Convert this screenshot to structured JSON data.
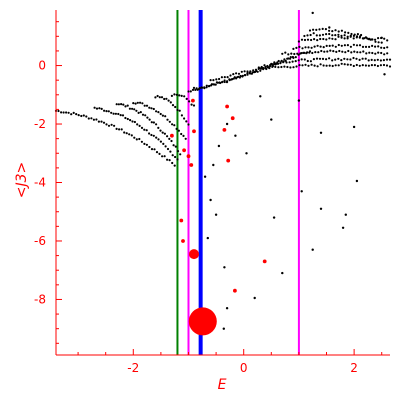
{
  "chart_data": {
    "type": "scatter",
    "xlabel": "E",
    "ylabel": "<J3>",
    "xlim": [
      -3.4,
      2.65
    ],
    "ylim": [
      -9.9,
      1.9
    ],
    "x_ticks": [
      -2,
      0,
      2
    ],
    "y_ticks": [
      0,
      -2,
      -4,
      -6,
      -8
    ],
    "x_tick_labels": [
      "-2",
      "0",
      "2"
    ],
    "y_tick_labels": [
      "0",
      "-2",
      "-4",
      "-6",
      "-8"
    ],
    "grid": false,
    "colors": {
      "axes": "#ff0000",
      "points": "#000000",
      "highlight_points": "#ff0000",
      "line_green": "#008000",
      "line_magenta": "#ff00ff",
      "line_blue": "#0000ff"
    },
    "vertical_lines": [
      {
        "x": -1.2,
        "color": "#008000",
        "width": "thin"
      },
      {
        "x": -1.0,
        "color": "#ff00ff",
        "width": "thin"
      },
      {
        "x": -0.78,
        "color": "#0000ff",
        "width": "thick"
      },
      {
        "x": 1.0,
        "color": "#ff00ff",
        "width": "thin"
      }
    ],
    "highlight_points": [
      {
        "x": -0.74,
        "y": -8.75,
        "size": "very-large"
      },
      {
        "x": -0.9,
        "y": -6.45,
        "size": "medium"
      },
      {
        "x": -0.16,
        "y": -7.7,
        "size": "small"
      },
      {
        "x": -1.08,
        "y": -2.9,
        "size": "small"
      },
      {
        "x": -1.0,
        "y": -3.1,
        "size": "small"
      },
      {
        "x": -0.95,
        "y": -3.4,
        "size": "small"
      },
      {
        "x": -0.9,
        "y": -2.25,
        "size": "small"
      },
      {
        "x": -0.92,
        "y": -1.2,
        "size": "small"
      },
      {
        "x": -0.35,
        "y": -2.2,
        "size": "small"
      },
      {
        "x": -0.3,
        "y": -1.4,
        "size": "small"
      },
      {
        "x": -0.28,
        "y": -3.25,
        "size": "small"
      },
      {
        "x": -1.13,
        "y": -5.3,
        "size": "small"
      },
      {
        "x": -1.1,
        "y": -6.0,
        "size": "small"
      },
      {
        "x": -1.3,
        "y": -2.4,
        "size": "small"
      },
      {
        "x": -0.2,
        "y": -1.8,
        "size": "small"
      },
      {
        "x": 0.38,
        "y": -6.7,
        "size": "small"
      }
    ],
    "scatter_branches": [
      {
        "x_start": -3.4,
        "y_start": -1.55,
        "x_end": -1.25,
        "y_end": -3.4,
        "n": 48
      },
      {
        "x_start": -2.7,
        "y_start": -1.45,
        "x_end": -1.2,
        "y_end": -3.2,
        "n": 36
      },
      {
        "x_start": -2.3,
        "y_start": -1.3,
        "x_end": -1.15,
        "y_end": -3.0,
        "n": 30
      },
      {
        "x_start": -2.0,
        "y_start": -1.25,
        "x_end": -1.05,
        "y_end": -2.5,
        "n": 24
      },
      {
        "x_start": -1.6,
        "y_start": -1.05,
        "x_end": -1.0,
        "y_end": -2.0,
        "n": 16
      },
      {
        "x_start": -1.3,
        "y_start": -1.0,
        "x_end": -0.9,
        "y_end": -1.4,
        "n": 10
      },
      {
        "x_start": -1.0,
        "y_start": -0.9,
        "x_end": 0.6,
        "y_end": 0.1,
        "n": 40
      },
      {
        "x_start": -0.9,
        "y_start": -0.8,
        "x_end": 0.9,
        "y_end": 0.3,
        "n": 40
      },
      {
        "x_start": -0.6,
        "y_start": -0.5,
        "x_end": 1.2,
        "y_end": 0.5,
        "n": 36
      },
      {
        "x_start": 0.3,
        "y_start": -0.1,
        "x_end": 2.65,
        "y_end": 0.0,
        "n": 44
      },
      {
        "x_start": 0.5,
        "y_start": 0.1,
        "x_end": 2.65,
        "y_end": 0.2,
        "n": 40
      },
      {
        "x_start": 0.7,
        "y_start": 0.4,
        "x_end": 2.6,
        "y_end": 0.4,
        "n": 36
      },
      {
        "x_start": 0.9,
        "y_start": 0.6,
        "x_end": 2.6,
        "y_end": 0.6,
        "n": 32
      },
      {
        "x_start": 1.0,
        "y_start": 0.85,
        "x_end": 2.6,
        "y_end": 0.9,
        "n": 30
      },
      {
        "x_start": 1.1,
        "y_start": 1.05,
        "x_end": 2.5,
        "y_end": 0.8,
        "n": 26
      },
      {
        "x_start": 1.2,
        "y_start": 1.2,
        "x_end": 2.3,
        "y_end": 0.9,
        "n": 20
      }
    ],
    "scatter_points": [
      {
        "x": 1.25,
        "y": 1.8
      },
      {
        "x": 1.55,
        "y": 1.3
      },
      {
        "x": 2.5,
        "y": 0.95
      },
      {
        "x": 2.55,
        "y": -0.3
      },
      {
        "x": 0.3,
        "y": -1.05
      },
      {
        "x": 0.5,
        "y": -1.85
      },
      {
        "x": 1.0,
        "y": -1.2
      },
      {
        "x": 1.4,
        "y": -2.3
      },
      {
        "x": 2.0,
        "y": -2.1
      },
      {
        "x": 2.05,
        "y": -3.95
      },
      {
        "x": 1.05,
        "y": -4.3
      },
      {
        "x": 1.4,
        "y": -4.9
      },
      {
        "x": 1.85,
        "y": -5.1
      },
      {
        "x": 1.8,
        "y": -5.55
      },
      {
        "x": 0.55,
        "y": -5.2
      },
      {
        "x": 1.25,
        "y": -6.3
      },
      {
        "x": 0.7,
        "y": -7.1
      },
      {
        "x": 0.2,
        "y": -7.95
      },
      {
        "x": -0.35,
        "y": -6.9
      },
      {
        "x": -0.36,
        "y": -9.0
      },
      {
        "x": -0.55,
        "y": -3.4
      },
      {
        "x": -0.6,
        "y": -4.6
      },
      {
        "x": -0.5,
        "y": -5.1
      },
      {
        "x": -0.45,
        "y": -2.75
      },
      {
        "x": -0.3,
        "y": -2.0
      },
      {
        "x": -0.15,
        "y": -2.4
      },
      {
        "x": 0.05,
        "y": -3.0
      },
      {
        "x": -0.7,
        "y": -3.8
      },
      {
        "x": -0.65,
        "y": -5.9
      },
      {
        "x": -0.3,
        "y": -8.3
      }
    ]
  }
}
